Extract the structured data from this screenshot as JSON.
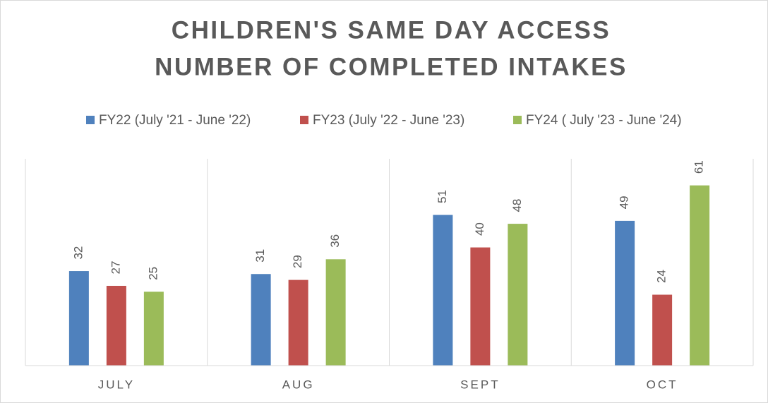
{
  "chart_data": {
    "type": "bar",
    "title": [
      "CHILDREN'S SAME DAY ACCESS",
      "NUMBER OF COMPLETED INTAKES"
    ],
    "categories": [
      "JULY",
      "AUG",
      "SEPT",
      "OCT"
    ],
    "series": [
      {
        "name": "FY22 (July '21 - June '22)",
        "color": "#4f81bd",
        "values": [
          32,
          31,
          51,
          49
        ]
      },
      {
        "name": "FY23 (July '22 - June '23)",
        "color": "#c0504d",
        "values": [
          27,
          29,
          40,
          24
        ]
      },
      {
        "name": "FY24 ( July '23 - June '24)",
        "color": "#9bbb59",
        "values": [
          25,
          36,
          48,
          61
        ]
      }
    ],
    "ylim": [
      0,
      70
    ],
    "legend": "top"
  }
}
